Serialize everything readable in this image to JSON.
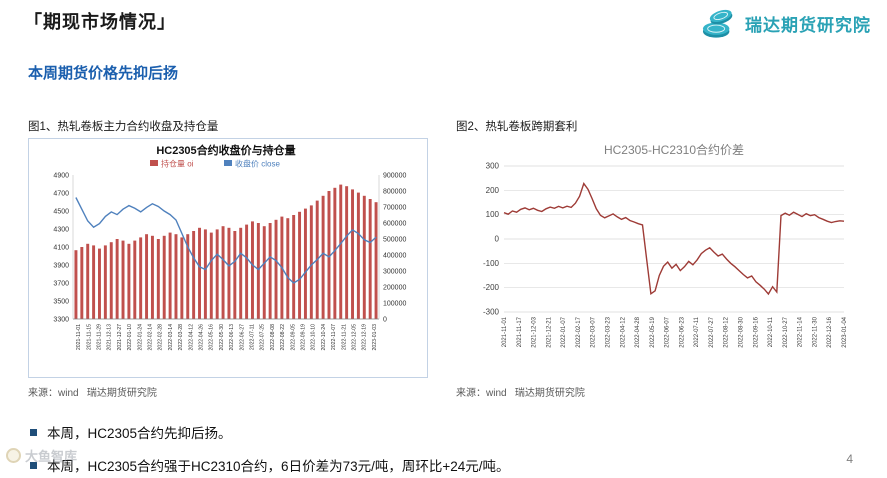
{
  "page": {
    "title": "「期现市场情况」",
    "page_number": "4",
    "accent_blue": "#1b5fae",
    "watermark": "大鱼智库"
  },
  "logo": {
    "name": "瑞达期货研究院",
    "color": "#2aa2b5"
  },
  "section": {
    "heading": "本周期货价格先抑后扬"
  },
  "figures": [
    {
      "caption": "图1、热轧卷板主力合约收盘及持仓量",
      "source": "来源：wind   瑞达期货研究院"
    },
    {
      "caption": "图2、热轧卷板跨期套利",
      "source": "来源：wind   瑞达期货研究院"
    }
  ],
  "bullets": [
    "本周，HC2305合约先抑后扬。",
    "本周，HC2305合约强于HC2310合约，6日价差为73元/吨，周环比+24元/吨。"
  ],
  "chart_data": [
    {
      "type": "bar",
      "subtype": "bar+line combo",
      "title": "HC2305合约收盘价与持仓量",
      "legend": [
        {
          "label": "持仓量 oi",
          "color": "#c0504d"
        },
        {
          "label": "收盘价 close",
          "color": "#4f81bd"
        }
      ],
      "x_labels": [
        "2021-11-01",
        "2021-11-15",
        "2021-11-29",
        "2021-12-13",
        "2021-12-27",
        "2022-01-10",
        "2022-01-24",
        "2022-02-14",
        "2022-02-28",
        "2022-03-14",
        "2022-03-28",
        "2022-04-12",
        "2022-04-26",
        "2022-05-16",
        "2022-05-30",
        "2022-06-13",
        "2022-06-27",
        "2022-07-11",
        "2022-07-25",
        "2022-08-08",
        "2022-08-22",
        "2022-09-05",
        "2022-09-19",
        "2022-10-10",
        "2022-10-24",
        "2022-11-07",
        "2022-11-21",
        "2022-12-05",
        "2022-12-19",
        "2023-01-03"
      ],
      "ylim_left": [
        3300,
        4900
      ],
      "yticks_left": [
        3300,
        3500,
        3700,
        3900,
        4100,
        4300,
        4500,
        4700,
        4900
      ],
      "ylim_right": [
        0,
        900000
      ],
      "yticks_right": [
        0,
        100000,
        200000,
        300000,
        400000,
        500000,
        600000,
        700000,
        800000,
        900000
      ],
      "series": [
        {
          "name": "持仓量 oi",
          "type": "bar",
          "axis": "right",
          "color": "#c0504d",
          "values": [
            430000,
            450000,
            470000,
            460000,
            440000,
            460000,
            480000,
            500000,
            490000,
            470000,
            490000,
            510000,
            530000,
            520000,
            500000,
            520000,
            540000,
            530000,
            510000,
            530000,
            550000,
            570000,
            560000,
            540000,
            560000,
            580000,
            570000,
            550000,
            570000,
            590000,
            610000,
            600000,
            580000,
            600000,
            620000,
            640000,
            630000,
            650000,
            670000,
            690000,
            710000,
            740000,
            770000,
            800000,
            820000,
            840000,
            830000,
            810000,
            790000,
            770000,
            750000,
            730000
          ]
        },
        {
          "name": "收盘价 close",
          "type": "line",
          "axis": "left",
          "color": "#4f81bd",
          "values": [
            4650,
            4520,
            4390,
            4320,
            4360,
            4440,
            4490,
            4460,
            4520,
            4560,
            4530,
            4490,
            4540,
            4580,
            4550,
            4500,
            4460,
            4400,
            4250,
            4100,
            3980,
            3880,
            3850,
            3950,
            4020,
            3960,
            3890,
            3940,
            4030,
            3980,
            3900,
            3850,
            3920,
            3990,
            3950,
            3870,
            3760,
            3700,
            3740,
            3820,
            3900,
            3960,
            4030,
            3990,
            4060,
            4140,
            4220,
            4290,
            4250,
            4180,
            4150,
            4210
          ]
        }
      ]
    },
    {
      "type": "line",
      "title": "HC2305-HC2310合约价差",
      "title_color": "#7f7f7f",
      "x_labels": [
        "2021-11-01",
        "2021-11-17",
        "2021-12-03",
        "2021-12-21",
        "2022-01-07",
        "2022-02-17",
        "2022-03-07",
        "2022-03-23",
        "2022-04-12",
        "2022-04-28",
        "2022-05-19",
        "2022-06-07",
        "2022-06-23",
        "2022-07-11",
        "2022-07-27",
        "2022-08-12",
        "2022-08-30",
        "2022-09-16",
        "2022-10-11",
        "2022-10-27",
        "2022-11-14",
        "2022-11-30",
        "2022-12-16",
        "2023-01-04"
      ],
      "ylim": [
        -300,
        300
      ],
      "yticks": [
        -300,
        -200,
        -100,
        0,
        100,
        200,
        300
      ],
      "grid": true,
      "series": [
        {
          "name": "HC2305-HC2310价差",
          "color": "#9e3b36",
          "values": [
            108,
            102,
            115,
            110,
            122,
            128,
            120,
            126,
            118,
            113,
            124,
            131,
            126,
            134,
            128,
            135,
            130,
            147,
            176,
            228,
            204,
            166,
            124,
            97,
            87,
            95,
            103,
            91,
            81,
            88,
            76,
            70,
            63,
            58,
            -85,
            -225,
            -213,
            -150,
            -112,
            -95,
            -120,
            -104,
            -130,
            -114,
            -92,
            -106,
            -86,
            -60,
            -46,
            -36,
            -54,
            -70,
            -62,
            -82,
            -100,
            -114,
            -130,
            -146,
            -160,
            -152,
            -176,
            -190,
            -206,
            -226,
            -196,
            -218,
            96,
            106,
            98,
            110,
            101,
            92,
            104,
            96,
            100,
            88,
            81,
            73,
            68,
            72,
            75,
            73
          ]
        }
      ]
    }
  ]
}
